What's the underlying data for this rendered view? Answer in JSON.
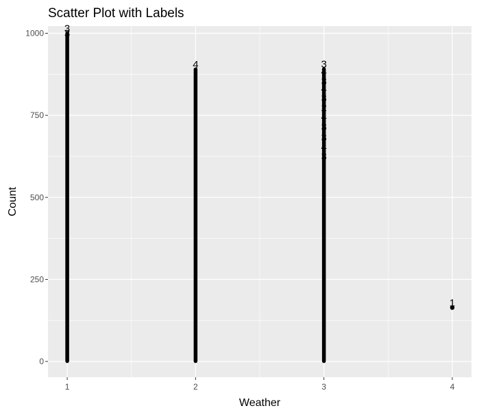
{
  "chart_data": {
    "type": "scatter",
    "title": "Scatter Plot with Labels",
    "xlabel": "Weather",
    "ylabel": "Count",
    "x_ticks": [
      1,
      2,
      3,
      4
    ],
    "y_ticks": [
      0,
      250,
      500,
      750,
      1000
    ],
    "xlim": [
      0.85,
      4.15
    ],
    "ylim": [
      -48,
      1022
    ],
    "grid": true,
    "legend": "none",
    "colors": {
      "panel": "#ebebeb",
      "grid": "#ffffff",
      "point": "#000000",
      "halo_warm": "#e8a23a",
      "halo_cool": "#2a7fd4"
    },
    "columns": [
      {
        "x": 1,
        "min": 1,
        "max": 1000
      },
      {
        "x": 2,
        "min": 1,
        "max": 890
      },
      {
        "x": 3,
        "min": 1,
        "max": 891
      },
      {
        "x": 4,
        "min": 164,
        "max": 164
      }
    ],
    "labels": [
      {
        "x": 1,
        "y": 1000,
        "text": "3"
      },
      {
        "x": 1,
        "y": 985,
        "text": "3"
      },
      {
        "x": 2,
        "y": 890,
        "text": "4"
      },
      {
        "x": 3,
        "y": 891,
        "text": "3"
      },
      {
        "x": 3,
        "y": 868,
        "text": "4"
      },
      {
        "x": 3,
        "y": 839,
        "text": "3"
      },
      {
        "x": 3,
        "y": 816,
        "text": "4"
      },
      {
        "x": 3,
        "y": 788,
        "text": "3"
      },
      {
        "x": 3,
        "y": 759,
        "text": "2"
      },
      {
        "x": 3,
        "y": 730,
        "text": "4"
      },
      {
        "x": 3,
        "y": 700,
        "text": "3"
      },
      {
        "x": 3,
        "y": 668,
        "text": "3"
      },
      {
        "x": 3,
        "y": 639,
        "text": "4"
      },
      {
        "x": 3,
        "y": 610,
        "text": "3"
      },
      {
        "x": 4,
        "y": 164,
        "text": "1"
      }
    ]
  }
}
